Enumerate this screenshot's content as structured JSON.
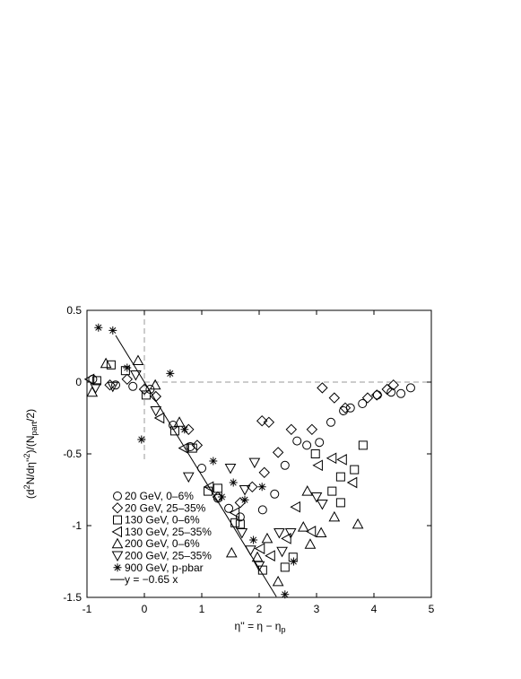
{
  "chart_data": {
    "type": "scatter",
    "xlabel": [
      "η'' = η − η",
      "p"
    ],
    "ylabel": [
      "(d",
      "2",
      "N/dη''",
      "2",
      ")/(N",
      "part",
      "/2)"
    ],
    "xlim": [
      -1,
      5
    ],
    "xticks": [
      -1,
      0,
      1,
      2,
      3,
      4,
      5
    ],
    "ylim": [
      -1.5,
      0.5
    ],
    "yticks": [
      -1.5,
      -1,
      -0.5,
      0,
      0.5
    ],
    "legend": "lower left",
    "series": [
      {
        "name": "20 GeV, 0–6%",
        "marker": "circle",
        "color": "#000000",
        "x": [
          2.45,
          2.66,
          2.83,
          3.05,
          3.25,
          3.47,
          3.59,
          3.8,
          4.06,
          4.3,
          4.47,
          4.64,
          2.27,
          2.06,
          1.67,
          1.47,
          1.28,
          -0.9,
          -0.5,
          -0.2,
          0.1,
          0.5,
          0.8,
          1.0
        ],
        "values": [
          -0.58,
          -0.41,
          -0.44,
          -0.42,
          -0.28,
          -0.2,
          -0.18,
          -0.15,
          -0.09,
          -0.07,
          -0.08,
          -0.04,
          -0.78,
          -0.89,
          -0.94,
          -0.88,
          -0.81,
          0.02,
          -0.02,
          -0.03,
          -0.05,
          -0.3,
          -0.45,
          -0.6
        ]
      },
      {
        "name": "20 GeV, 25–35%",
        "marker": "diamond",
        "color": "#000000",
        "x": [
          2.05,
          2.17,
          2.33,
          2.56,
          2.92,
          3.1,
          3.31,
          3.5,
          3.89,
          4.05,
          4.23,
          4.34,
          2.09,
          1.88,
          0.92,
          0.77,
          1.28,
          1.67,
          -0.6,
          -0.3,
          0,
          0.2
        ],
        "values": [
          -0.27,
          -0.28,
          -0.49,
          -0.33,
          -0.33,
          -0.04,
          -0.11,
          -0.18,
          -0.11,
          -0.09,
          -0.05,
          -0.02,
          -0.63,
          -0.73,
          -0.44,
          -0.33,
          -0.8,
          -0.84,
          -0.02,
          0.02,
          -0.05,
          -0.1
        ]
      },
      {
        "name": "130 GeV, 0–6%",
        "marker": "square",
        "color": "#000000",
        "x": [
          -0.83,
          -0.58,
          -0.33,
          0.03,
          0.53,
          0.84,
          1.11,
          1.67,
          2.06,
          2.45,
          2.59,
          2.98,
          3.27,
          3.42,
          3.42,
          3.66,
          3.81,
          1.58,
          1.28
        ],
        "values": [
          0.01,
          0.12,
          0.08,
          -0.09,
          -0.34,
          -0.46,
          -0.76,
          -0.99,
          -1.31,
          -1.29,
          -1.22,
          -0.5,
          -0.76,
          -0.84,
          -0.66,
          -0.61,
          -0.44,
          -0.98,
          -0.74
        ]
      },
      {
        "name": "130 GeV, 25–35%",
        "marker": "left",
        "color": "#000000",
        "x": [
          -0.95,
          0.27,
          0.69,
          1.13,
          1.58,
          2.02,
          2.2,
          2.48,
          2.64,
          3.03,
          3.27,
          3.45,
          3.63,
          2.91
        ],
        "values": [
          0.02,
          -0.25,
          -0.46,
          -0.73,
          -0.91,
          -1.16,
          -1.21,
          -1.09,
          -0.87,
          -0.58,
          -0.53,
          -0.54,
          -0.7,
          -1.04
        ]
      },
      {
        "name": "200 GeV, 0–6%",
        "marker": "up",
        "color": "#000000",
        "x": [
          -0.91,
          -0.67,
          -0.11,
          0.19,
          0.61,
          1.52,
          1.97,
          2.14,
          2.33,
          2.77,
          2.89,
          3.08,
          2.84,
          3.31,
          3.72
        ],
        "values": [
          -0.07,
          0.13,
          0.15,
          -0.02,
          -0.28,
          -1.19,
          -1.22,
          -1.09,
          -1.39,
          -1.01,
          -1.13,
          -1.05,
          -0.76,
          -0.94,
          -0.99
        ]
      },
      {
        "name": "200 GeV, 25–35%",
        "marker": "down",
        "color": "#000000",
        "x": [
          -0.85,
          -0.55,
          -0.15,
          0.2,
          0.77,
          1.5,
          1.92,
          1.75,
          1.7,
          1.85,
          2.0,
          2.35,
          2.4,
          3.0,
          3.1,
          2.55
        ],
        "values": [
          -0.04,
          -0.03,
          0.05,
          -0.2,
          -0.66,
          -0.6,
          -0.56,
          -0.75,
          -1.05,
          -1.17,
          -1.28,
          -1.05,
          -1.18,
          -0.8,
          -0.85,
          -1.05
        ]
      },
      {
        "name": "900 GeV, p-pbar",
        "marker": "star",
        "color": "#000000",
        "x": [
          -0.8,
          -0.55,
          -0.3,
          -0.05,
          0.45,
          0.7,
          1.2,
          1.55,
          1.75,
          2.05,
          2.6,
          2.45,
          1.35,
          1.9
        ],
        "values": [
          0.38,
          0.36,
          0.1,
          -0.4,
          0.06,
          -0.33,
          -0.55,
          -0.7,
          -0.82,
          -0.73,
          -1.25,
          -1.48,
          -0.8,
          -1.1
        ]
      },
      {
        "name": "y = −0.65 x",
        "marker": "line",
        "color": "#000000",
        "x": [
          -0.5,
          2.3
        ],
        "values": [
          0.325,
          -1.495
        ]
      }
    ]
  }
}
